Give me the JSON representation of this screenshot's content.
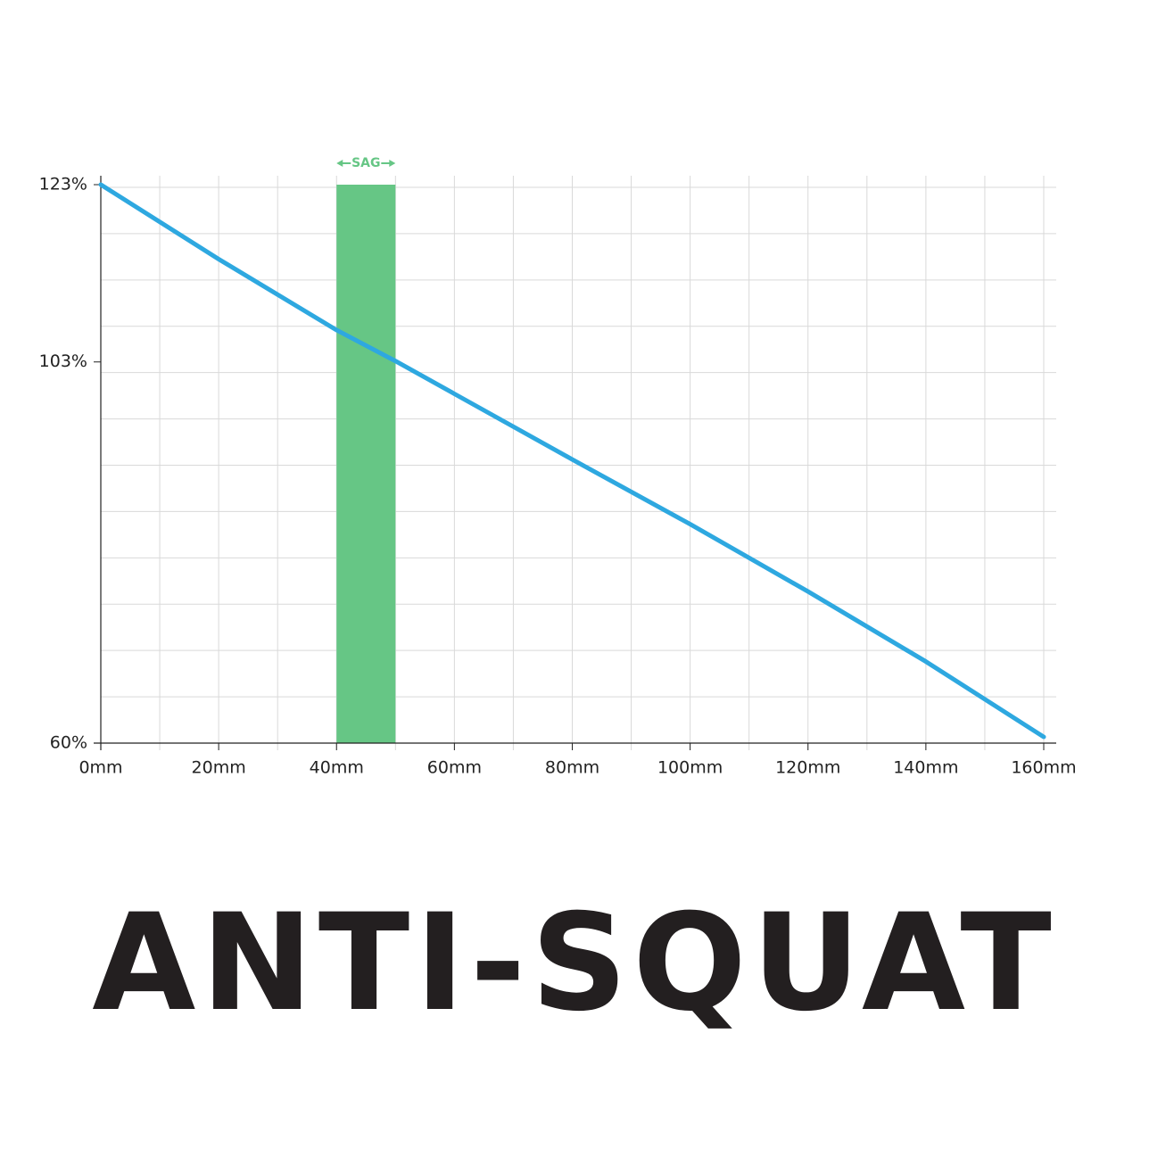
{
  "chart_data": {
    "type": "line",
    "title": "ANTI-SQUAT",
    "x": [
      0,
      20,
      40,
      50,
      60,
      80,
      100,
      120,
      140,
      160
    ],
    "series": [
      {
        "name": "Anti-squat",
        "color": "#2ea8e0",
        "values": [
          123,
          114.6,
          106.6,
          103.1,
          99.4,
          92,
          84.7,
          77.1,
          69.2,
          60.7
        ]
      }
    ],
    "xlim": [
      0,
      160
    ],
    "xticks": [
      {
        "value": 0,
        "label": "0mm"
      },
      {
        "value": 20,
        "label": "20mm"
      },
      {
        "value": 40,
        "label": "40mm"
      },
      {
        "value": 60,
        "label": "60mm"
      },
      {
        "value": 80,
        "label": "80mm"
      },
      {
        "value": 100,
        "label": "100mm"
      },
      {
        "value": 120,
        "label": "120mm"
      },
      {
        "value": 140,
        "label": "140mm"
      },
      {
        "value": 160,
        "label": "160mm"
      }
    ],
    "ylim": [
      60,
      123
    ],
    "yticks": [
      {
        "value": 60,
        "label": "60%"
      },
      {
        "value": 103,
        "label": "103%"
      },
      {
        "value": 123,
        "label": "123%"
      }
    ],
    "grid": true,
    "x_grid_step": 10,
    "y_grid_divisions": 12,
    "sag": {
      "label": "SAG",
      "x": [
        40,
        50
      ],
      "color": "#66c685"
    }
  }
}
